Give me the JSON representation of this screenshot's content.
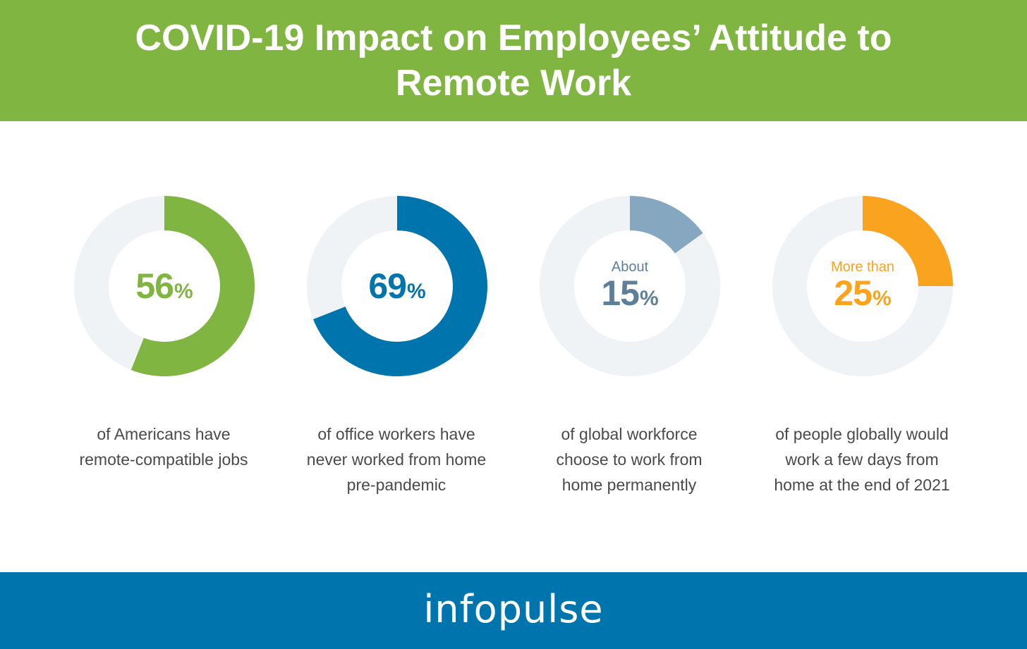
{
  "header": {
    "title": "COVID-19 Impact on Employees’ Attitude to Remote Work",
    "background_color": "#80b541"
  },
  "chart_data": [
    {
      "type": "pie",
      "value": 56,
      "unit": "%",
      "prefix": "",
      "caption_lines": [
        "of Americans have",
        "remote-compatible jobs"
      ],
      "color": "#80b541",
      "track_color": "#eff3f6"
    },
    {
      "type": "pie",
      "value": 69,
      "unit": "%",
      "prefix": "",
      "caption_lines": [
        "of office workers have",
        "never worked from home",
        "pre-pandemic"
      ],
      "color": "#0075ad",
      "track_color": "#eff3f6"
    },
    {
      "type": "pie",
      "value": 15,
      "unit": "%",
      "prefix": "About",
      "caption_lines": [
        "of global workforce",
        "choose to work from",
        "home permanently"
      ],
      "color": "#86a7c0",
      "text_color": "#5e7f99",
      "track_color": "#eff3f6"
    },
    {
      "type": "pie",
      "value": 25,
      "unit": "%",
      "prefix": "More than",
      "caption_lines": [
        "of people globally would",
        "work a few days from",
        "home at the end of 2021"
      ],
      "color": "#f9a31f",
      "track_color": "#eff3f6"
    }
  ],
  "footer": {
    "logo_text": "infopulse",
    "background_color": "#0075ad"
  }
}
